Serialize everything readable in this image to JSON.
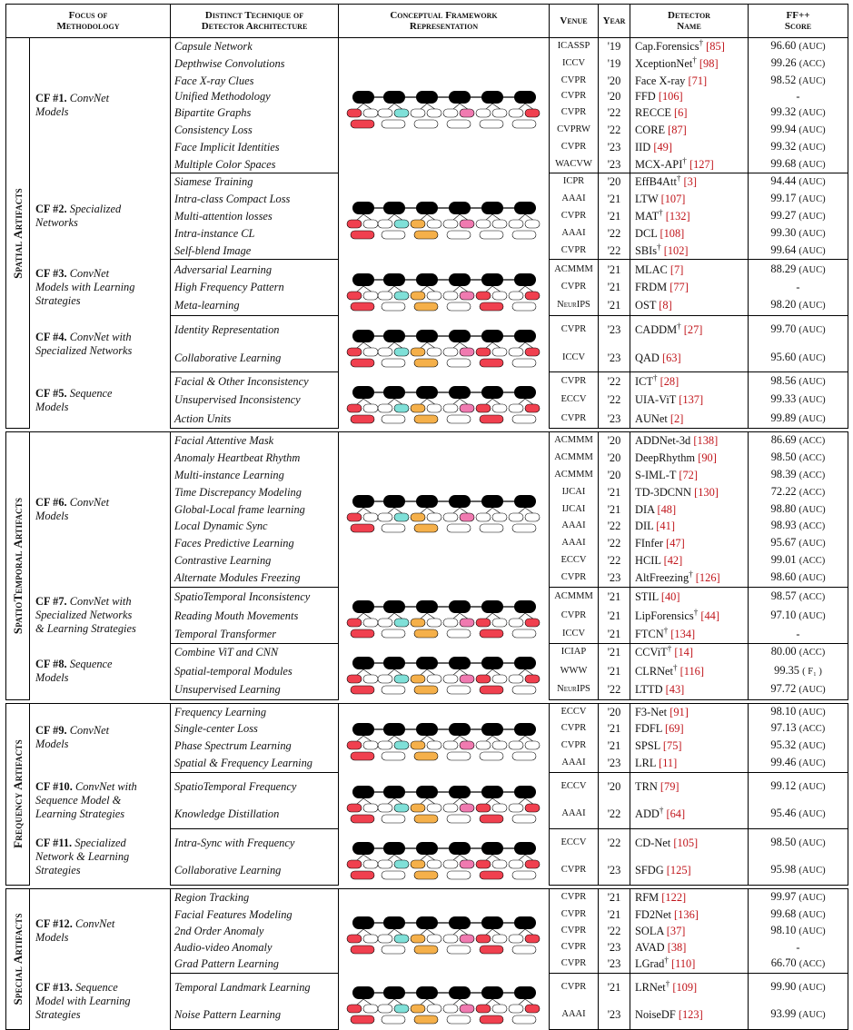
{
  "headers": {
    "focus": [
      "Focus of",
      "Methodology"
    ],
    "technique": [
      "Distinct Technique of",
      "Detector Architecture"
    ],
    "framework": [
      "Conceptual Framework",
      "Representation"
    ],
    "venue": "Venue",
    "year": "Year",
    "detector": [
      "Detector",
      "Name"
    ],
    "score": [
      "FF++",
      "Score"
    ]
  },
  "colors": {
    "red": "#f0404f",
    "cyan": "#7fe0d8",
    "orange": "#f5b04a",
    "pink": "#f07ab0",
    "black": "#000000"
  },
  "categories": [
    {
      "name": "Spatial Artifacts",
      "frameworks": [
        {
          "id": "CF #1.",
          "label": [
            "ConvNet",
            "Models"
          ],
          "diagram": [
            1,
            1,
            0,
            1,
            0,
            1
          ],
          "rows": [
            {
              "tech": "Capsule Network",
              "venue": "ICASSP",
              "year": "'19",
              "det": "Cap.Forensics",
              "dag": true,
              "ref": "85",
              "score": "96.60",
              "metric": "(AUC)"
            },
            {
              "tech": "Depthwise Convolutions",
              "venue": "ICCV",
              "year": "'19",
              "det": "XceptionNet",
              "dag": true,
              "ref": "98",
              "score": "99.26",
              "metric": "(ACC)"
            },
            {
              "tech": "Face X-ray Clues",
              "venue": "CVPR",
              "year": "'20",
              "det": "Face X-ray",
              "dag": false,
              "ref": "71",
              "score": "98.52",
              "metric": "(AUC)"
            },
            {
              "tech": "Unified Methodology",
              "venue": "CVPR",
              "year": "'20",
              "det": "FFD",
              "dag": false,
              "ref": "106",
              "score": "-",
              "metric": ""
            },
            {
              "tech": "Bipartite Graphs",
              "venue": "CVPR",
              "year": "'22",
              "det": "RECCE",
              "dag": false,
              "ref": "6",
              "score": "99.32",
              "metric": "(AUC)"
            },
            {
              "tech": "Consistency Loss",
              "venue": "CVPRW",
              "year": "'22",
              "det": "CORE",
              "dag": false,
              "ref": "87",
              "score": "99.94",
              "metric": "(AUC)"
            },
            {
              "tech": "Face Implicit Identities",
              "venue": "CVPR",
              "year": "'23",
              "det": "IID",
              "dag": false,
              "ref": "49",
              "score": "99.32",
              "metric": "(AUC)"
            },
            {
              "tech": "Multiple Color Spaces",
              "venue": "WACVW",
              "year": "'23",
              "det": "MCX-API",
              "dag": true,
              "ref": "127",
              "score": "99.68",
              "metric": "(AUC)"
            }
          ]
        },
        {
          "id": "CF #2.",
          "label": [
            "Specialized",
            "Networks"
          ],
          "diagram": [
            1,
            1,
            1,
            1,
            0,
            0
          ],
          "rows": [
            {
              "tech": "Siamese Training",
              "venue": "ICPR",
              "year": "'20",
              "det": "EffB4Att",
              "dag": true,
              "ref": "3",
              "score": "94.44",
              "metric": "(AUC)"
            },
            {
              "tech": "Intra-class Compact Loss",
              "venue": "AAAI",
              "year": "'21",
              "det": "LTW",
              "dag": false,
              "ref": "107",
              "score": "99.17",
              "metric": "(AUC)"
            },
            {
              "tech": "Multi-attention losses",
              "venue": "CVPR",
              "year": "'21",
              "det": "MAT",
              "dag": true,
              "ref": "132",
              "score": "99.27",
              "metric": "(AUC)"
            },
            {
              "tech": "Intra-instance CL",
              "venue": "AAAI",
              "year": "'22",
              "det": "DCL",
              "dag": false,
              "ref": "108",
              "score": "99.30",
              "metric": "(AUC)"
            },
            {
              "tech": "Self-blend Image",
              "venue": "CVPR",
              "year": "'22",
              "det": "SBIs",
              "dag": true,
              "ref": "102",
              "score": "99.64",
              "metric": "(AUC)"
            }
          ]
        },
        {
          "id": "CF #3.",
          "label": [
            "ConvNet",
            "Models with Learning",
            "Strategies"
          ],
          "diagram": [
            1,
            1,
            1,
            1,
            1,
            1
          ],
          "rows": [
            {
              "tech": "Adversarial Learning",
              "venue": "ACMMM",
              "year": "'21",
              "det": "MLAC",
              "dag": false,
              "ref": "7",
              "score": "88.29",
              "metric": "(AUC)"
            },
            {
              "tech": "High Frequency Pattern",
              "venue": "CVPR",
              "year": "'21",
              "det": "FRDM",
              "dag": false,
              "ref": "77",
              "score": "-",
              "metric": ""
            },
            {
              "tech": "Meta-learning",
              "venue": "NeurIPS",
              "year": "'21",
              "det": "OST",
              "dag": false,
              "ref": "8",
              "score": "98.20",
              "metric": "(AUC)"
            }
          ]
        },
        {
          "id": "CF #4.",
          "label": [
            "ConvNet with",
            "Specialized Networks"
          ],
          "diagram": [
            1,
            1,
            1,
            1,
            1,
            1
          ],
          "rows": [
            {
              "tech": "Identity Representation",
              "venue": "CVPR",
              "year": "'23",
              "det": "CADDM",
              "dag": true,
              "ref": "27",
              "score": "99.70",
              "metric": "(AUC)"
            },
            {
              "tech": "Collaborative Learning",
              "venue": "ICCV",
              "year": "'23",
              "det": "QAD",
              "dag": false,
              "ref": "63",
              "score": "95.60",
              "metric": "(AUC)"
            }
          ]
        },
        {
          "id": "CF #5.",
          "label": [
            "Sequence",
            "Models"
          ],
          "diagram": [
            1,
            1,
            1,
            1,
            1,
            1
          ],
          "rows": [
            {
              "tech": "Facial & Other Inconsistency",
              "venue": "CVPR",
              "year": "'22",
              "det": "ICT",
              "dag": true,
              "ref": "28",
              "score": "98.56",
              "metric": "(AUC)"
            },
            {
              "tech": "Unsupervised Inconsistency",
              "venue": "ECCV",
              "year": "'22",
              "det": "UIA-ViT",
              "dag": false,
              "ref": "137",
              "score": "99.33",
              "metric": "(AUC)"
            },
            {
              "tech": "Action Units",
              "venue": "CVPR",
              "year": "'23",
              "det": "AUNet",
              "dag": false,
              "ref": "2",
              "score": "99.89",
              "metric": "(AUC)"
            }
          ]
        }
      ]
    },
    {
      "name": "SpatioTemporal Artifacts",
      "frameworks": [
        {
          "id": "CF #6.",
          "label": [
            "ConvNet",
            "Models"
          ],
          "diagram": [
            1,
            1,
            1,
            1,
            0,
            0
          ],
          "rows": [
            {
              "tech": "Facial Attentive Mask",
              "venue": "ACMMM",
              "year": "'20",
              "det": "ADDNet-3d",
              "dag": false,
              "ref": "138",
              "score": "86.69",
              "metric": "(ACC)"
            },
            {
              "tech": "Anomaly Heartbeat Rhythm",
              "venue": "ACMMM",
              "year": "'20",
              "det": "DeepRhythm",
              "dag": false,
              "ref": "90",
              "score": "98.50",
              "metric": "(ACC)"
            },
            {
              "tech": "Multi-instance Learning",
              "venue": "ACMMM",
              "year": "'20",
              "det": "S-IML-T",
              "dag": false,
              "ref": "72",
              "score": "98.39",
              "metric": "(ACC)"
            },
            {
              "tech": "Time Discrepancy Modeling",
              "venue": "IJCAI",
              "year": "'21",
              "det": "TD-3DCNN",
              "dag": false,
              "ref": "130",
              "score": "72.22",
              "metric": "(ACC)"
            },
            {
              "tech": "Global-Local frame learning",
              "venue": "IJCAI",
              "year": "'21",
              "det": "DIA",
              "dag": false,
              "ref": "48",
              "score": "98.80",
              "metric": "(AUC)"
            },
            {
              "tech": "Local Dynamic Sync",
              "venue": "AAAI",
              "year": "'22",
              "det": "DIL",
              "dag": false,
              "ref": "41",
              "score": "98.93",
              "metric": "(ACC)"
            },
            {
              "tech": "Faces Predictive Learning",
              "venue": "AAAI",
              "year": "'22",
              "det": "FInfer",
              "dag": false,
              "ref": "47",
              "score": "95.67",
              "metric": "(AUC)"
            },
            {
              "tech": "Contrastive Learning",
              "venue": "ECCV",
              "year": "'22",
              "det": "HCIL",
              "dag": false,
              "ref": "42",
              "score": "99.01",
              "metric": "(ACC)"
            },
            {
              "tech": "Alternate Modules Freezing",
              "venue": "CVPR",
              "year": "'23",
              "det": "AltFreezing",
              "dag": true,
              "ref": "126",
              "score": "98.60",
              "metric": "(AUC)"
            }
          ]
        },
        {
          "id": "CF #7.",
          "label": [
            "ConvNet with",
            "Specialized Networks",
            "& Learning Strategies"
          ],
          "diagram": [
            1,
            1,
            1,
            1,
            1,
            1
          ],
          "rows": [
            {
              "tech": "SpatioTemporal Inconsistency",
              "venue": "ACMMM",
              "year": "'21",
              "det": "STIL",
              "dag": false,
              "ref": "40",
              "score": "98.57",
              "metric": "(ACC)"
            },
            {
              "tech": "Reading Mouth Movements",
              "venue": "CVPR",
              "year": "'21",
              "det": "LipForensics",
              "dag": true,
              "ref": "44",
              "score": "97.10",
              "metric": "(AUC)"
            },
            {
              "tech": "Temporal Transformer",
              "venue": "ICCV",
              "year": "'21",
              "det": "FTCN",
              "dag": true,
              "ref": "134",
              "score": "-",
              "metric": ""
            }
          ]
        },
        {
          "id": "CF #8.",
          "label": [
            "Sequence",
            "Models"
          ],
          "diagram": [
            1,
            1,
            1,
            1,
            1,
            1
          ],
          "rows": [
            {
              "tech": "Combine ViT and CNN",
              "venue": "ICIAP",
              "year": "'21",
              "det": "CCViT",
              "dag": true,
              "ref": "14",
              "score": "80.00",
              "metric": "(ACC)"
            },
            {
              "tech": "Spatial-temporal Modules",
              "venue": "WWW",
              "year": "'21",
              "det": "CLRNet",
              "dag": true,
              "ref": "116",
              "score": "99.35",
              "metric": "( F₁ )"
            },
            {
              "tech": "Unsupervised Learning",
              "venue": "NeurIPS",
              "year": "'22",
              "det": "LTTD",
              "dag": false,
              "ref": "43",
              "score": "97.72",
              "metric": "(AUC)"
            }
          ]
        }
      ]
    },
    {
      "name": "Frequency Artifacts",
      "frameworks": [
        {
          "id": "CF #9.",
          "label": [
            "ConvNet",
            "Models"
          ],
          "diagram": [
            1,
            1,
            1,
            1,
            0,
            0
          ],
          "rows": [
            {
              "tech": "Frequency Learning",
              "venue": "ECCV",
              "year": "'20",
              "det": "F3-Net",
              "dag": false,
              "ref": "91",
              "score": "98.10",
              "metric": "(AUC)"
            },
            {
              "tech": "Single-center Loss",
              "venue": "CVPR",
              "year": "'21",
              "det": "FDFL",
              "dag": false,
              "ref": "69",
              "score": "97.13",
              "metric": "(ACC)"
            },
            {
              "tech": "Phase Spectrum Learning",
              "venue": "CVPR",
              "year": "'21",
              "det": "SPSL",
              "dag": false,
              "ref": "75",
              "score": "95.32",
              "metric": "(AUC)"
            },
            {
              "tech": "Spatial & Frequency Learning",
              "venue": "AAAI",
              "year": "'23",
              "det": "LRL",
              "dag": false,
              "ref": "11",
              "score": "99.46",
              "metric": "(AUC)"
            }
          ]
        },
        {
          "id": "CF #10.",
          "label": [
            "ConvNet with",
            "Sequence Model &",
            "Learning Strategies"
          ],
          "diagram": [
            1,
            1,
            1,
            1,
            1,
            1
          ],
          "rows": [
            {
              "tech": "SpatioTemporal Frequency",
              "venue": "ECCV",
              "year": "'20",
              "det": "TRN",
              "dag": false,
              "ref": "79",
              "score": "99.12",
              "metric": "(AUC)"
            },
            {
              "tech": "Knowledge Distillation",
              "venue": "AAAI",
              "year": "'22",
              "det": "ADD",
              "dag": true,
              "ref": "64",
              "score": "95.46",
              "metric": "(AUC)"
            }
          ]
        },
        {
          "id": "CF #11.",
          "label": [
            "Specialized",
            "Network & Learning",
            "Strategies"
          ],
          "diagram": [
            1,
            1,
            1,
            1,
            1,
            1
          ],
          "rows": [
            {
              "tech": "Intra-Sync with Frequency",
              "venue": "ECCV",
              "year": "'22",
              "det": "CD-Net",
              "dag": false,
              "ref": "105",
              "score": "98.50",
              "metric": "(AUC)"
            },
            {
              "tech": "Collaborative Learning",
              "venue": "CVPR",
              "year": "'23",
              "det": "SFDG",
              "dag": false,
              "ref": "125",
              "score": "95.98",
              "metric": "(AUC)"
            }
          ]
        }
      ]
    },
    {
      "name": "Special Artifacts",
      "frameworks": [
        {
          "id": "CF #12.",
          "label": [
            "ConvNet",
            "Models"
          ],
          "diagram": [
            1,
            1,
            1,
            1,
            1,
            1
          ],
          "rows": [
            {
              "tech": "Region Tracking",
              "venue": "CVPR",
              "year": "'21",
              "det": "RFM",
              "dag": false,
              "ref": "122",
              "score": "99.97",
              "metric": "(AUC)"
            },
            {
              "tech": "Facial Features Modeling",
              "venue": "CVPR",
              "year": "'21",
              "det": "FD2Net",
              "dag": false,
              "ref": "136",
              "score": "99.68",
              "metric": "(AUC)"
            },
            {
              "tech": "2nd Order Anomaly",
              "venue": "CVPR",
              "year": "'22",
              "det": "SOLA",
              "dag": false,
              "ref": "37",
              "score": "98.10",
              "metric": "(AUC)"
            },
            {
              "tech": "Audio-video Anomaly",
              "venue": "CVPR",
              "year": "'23",
              "det": "AVAD",
              "dag": false,
              "ref": "38",
              "score": "-",
              "metric": ""
            },
            {
              "tech": "Grad Pattern Learning",
              "venue": "CVPR",
              "year": "'23",
              "det": "LGrad",
              "dag": true,
              "ref": "110",
              "score": "66.70",
              "metric": "(ACC)"
            }
          ]
        },
        {
          "id": "CF #13.",
          "label": [
            "Sequence",
            "Model with Learning",
            "Strategies"
          ],
          "diagram": [
            1,
            1,
            1,
            1,
            1,
            1
          ],
          "rows": [
            {
              "tech": "Temporal Landmark Learning",
              "venue": "CVPR",
              "year": "'21",
              "det": "LRNet",
              "dag": true,
              "ref": "109",
              "score": "99.90",
              "metric": "(AUC)"
            },
            {
              "tech": "Noise Pattern Learning",
              "venue": "AAAI",
              "year": "'23",
              "det": "NoiseDF",
              "dag": false,
              "ref": "123",
              "score": "93.99",
              "metric": "(AUC)"
            }
          ]
        }
      ]
    }
  ]
}
